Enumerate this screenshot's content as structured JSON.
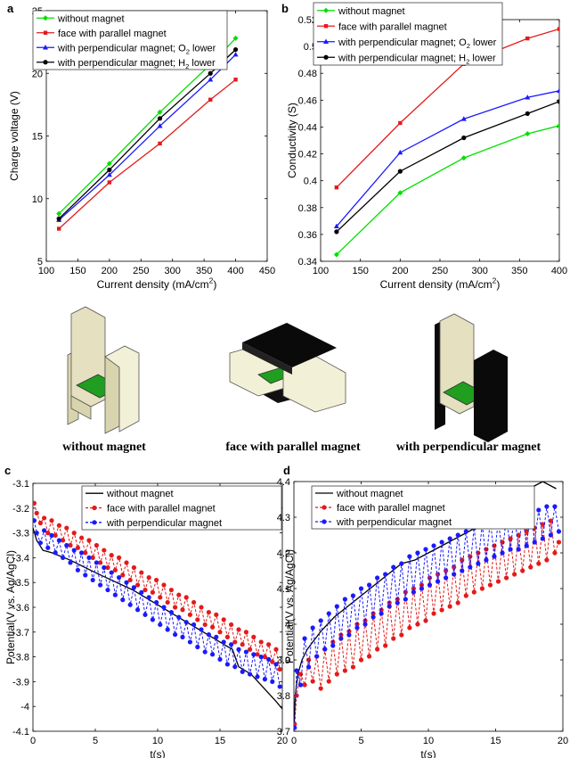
{
  "colors": {
    "green": "#00e000",
    "red": "#e41a1a",
    "blue": "#1a1aff",
    "black": "#000000",
    "block_face": "#f2f0d6",
    "block_side": "#d8d4ae",
    "membrane": "#1f9e1f",
    "magnet": "#0a0a0a"
  },
  "panel_letters": [
    "a",
    "b",
    "c",
    "d"
  ],
  "illustrations": [
    {
      "caption": "without magnet"
    },
    {
      "caption": "face with parallel magnet"
    },
    {
      "caption": "with perpendicular magnet"
    }
  ],
  "chart_data": [
    {
      "panel": "a",
      "type": "line",
      "xlabel": "Current density (mA/cm²)",
      "ylabel": "Charge voltage (V)",
      "xlim": [
        100,
        450
      ],
      "ylim": [
        5,
        25
      ],
      "xticks": [
        100,
        150,
        200,
        250,
        300,
        350,
        400,
        450
      ],
      "yticks": [
        5,
        10,
        15,
        20,
        25
      ],
      "grid": false,
      "legend": "top-left",
      "series": [
        {
          "name": "without magnet",
          "color": "#00e000",
          "marker": "diamond",
          "dashed": false,
          "x": [
            120,
            200,
            280,
            360,
            400
          ],
          "y": [
            8.8,
            12.8,
            16.9,
            20.7,
            22.8
          ]
        },
        {
          "name": "face with parallel magnet",
          "color": "#e41a1a",
          "marker": "square",
          "dashed": false,
          "x": [
            120,
            200,
            280,
            360,
            400
          ],
          "y": [
            7.6,
            11.3,
            14.4,
            17.9,
            19.5
          ]
        },
        {
          "name": "with perpendicular magnet; O₂ lower",
          "color": "#1a1aff",
          "marker": "triangle",
          "dashed": false,
          "x": [
            120,
            200,
            280,
            360,
            400
          ],
          "y": [
            8.3,
            11.9,
            15.8,
            19.5,
            21.5
          ]
        },
        {
          "name": "with perpendicular magnet; H₂ lower",
          "color": "#000000",
          "marker": "circle",
          "dashed": false,
          "x": [
            120,
            200,
            280,
            360,
            400
          ],
          "y": [
            8.4,
            12.3,
            16.4,
            20.0,
            21.9
          ]
        }
      ]
    },
    {
      "panel": "b",
      "type": "line",
      "xlabel": "Current density (mA/cm²)",
      "ylabel": "Conductivity (S)",
      "xlim": [
        100,
        400
      ],
      "ylim": [
        0.34,
        0.52
      ],
      "xticks": [
        100,
        150,
        200,
        250,
        300,
        350,
        400
      ],
      "yticks": [
        0.34,
        0.36,
        0.38,
        0.4,
        0.42,
        0.44,
        0.46,
        0.48,
        0.5,
        0.52
      ],
      "grid": false,
      "legend": "top-left",
      "series": [
        {
          "name": "without magnet",
          "color": "#00e000",
          "marker": "diamond",
          "dashed": false,
          "x": [
            120,
            200,
            280,
            360,
            400
          ],
          "y": [
            0.345,
            0.391,
            0.417,
            0.435,
            0.441
          ]
        },
        {
          "name": "face with parallel magnet",
          "color": "#e41a1a",
          "marker": "square",
          "dashed": false,
          "x": [
            120,
            200,
            280,
            360,
            400
          ],
          "y": [
            0.395,
            0.443,
            0.487,
            0.506,
            0.513
          ]
        },
        {
          "name": "with perpendicular magnet; O₂ lower",
          "color": "#1a1aff",
          "marker": "triangle",
          "dashed": false,
          "x": [
            120,
            200,
            280,
            360,
            400
          ],
          "y": [
            0.366,
            0.421,
            0.446,
            0.462,
            0.467
          ]
        },
        {
          "name": "with perpendicular magnet; H₂ lower",
          "color": "#000000",
          "marker": "circle",
          "dashed": false,
          "x": [
            120,
            200,
            280,
            360,
            400
          ],
          "y": [
            0.362,
            0.407,
            0.432,
            0.45,
            0.459
          ]
        }
      ]
    },
    {
      "panel": "c",
      "type": "line",
      "xlabel": "t(s)",
      "ylabel": "Potential(V vs. Ag/AgCl)",
      "xlim": [
        0,
        20
      ],
      "ylim": [
        -4.1,
        -3.1
      ],
      "xticks": [
        0,
        5,
        10,
        15,
        20
      ],
      "yticks": [
        -4.1,
        -4,
        -3.9,
        -3.8,
        -3.7,
        -3.6,
        -3.5,
        -3.4,
        -3.3,
        -3.2,
        -3.1
      ],
      "grid": false,
      "legend": "top-right",
      "series": [
        {
          "name": "without magnet",
          "color": "#000000",
          "marker": "none",
          "dashed": false,
          "x": [
            0,
            0.3,
            0.8,
            1.5,
            3,
            5,
            8,
            10,
            12,
            14,
            16,
            16.5,
            17.5,
            19.5,
            20
          ],
          "y": [
            -3.28,
            -3.33,
            -3.37,
            -3.38,
            -3.41,
            -3.46,
            -3.53,
            -3.59,
            -3.65,
            -3.71,
            -3.77,
            -3.84,
            -3.87,
            -3.98,
            -4.01
          ]
        },
        {
          "name": "face with parallel magnet",
          "color": "#e41a1a",
          "marker": "circle",
          "dashed": true,
          "x": [
            0.1,
            0.3,
            0.6,
            0.9,
            1.2,
            1.5,
            1.8,
            2.1,
            2.4,
            2.7,
            3.0,
            3.3,
            3.6,
            3.9,
            4.2,
            4.5,
            4.8,
            5.1,
            5.4,
            5.7,
            6.0,
            6.3,
            6.6,
            6.9,
            7.2,
            7.5,
            7.8,
            8.1,
            8.4,
            8.7,
            9.0,
            9.3,
            9.6,
            9.9,
            10.2,
            10.5,
            10.8,
            11.1,
            11.4,
            11.7,
            12.0,
            12.3,
            12.6,
            12.9,
            13.2,
            13.5,
            13.8,
            14.1,
            14.4,
            14.7,
            15.0,
            15.3,
            15.6,
            15.9,
            16.2,
            16.5,
            16.8,
            17.1,
            17.4,
            17.7,
            18.0,
            18.3,
            18.6,
            18.9,
            19.2,
            19.5,
            19.8
          ],
          "y": [
            -3.18,
            -3.22,
            -3.26,
            -3.24,
            -3.3,
            -3.25,
            -3.31,
            -3.27,
            -3.33,
            -3.28,
            -3.35,
            -3.3,
            -3.36,
            -3.32,
            -3.38,
            -3.33,
            -3.4,
            -3.35,
            -3.42,
            -3.37,
            -3.44,
            -3.39,
            -3.45,
            -3.4,
            -3.47,
            -3.42,
            -3.49,
            -3.44,
            -3.51,
            -3.46,
            -3.53,
            -3.48,
            -3.54,
            -3.49,
            -3.56,
            -3.51,
            -3.58,
            -3.53,
            -3.6,
            -3.55,
            -3.61,
            -3.56,
            -3.63,
            -3.58,
            -3.65,
            -3.6,
            -3.67,
            -3.62,
            -3.68,
            -3.63,
            -3.7,
            -3.65,
            -3.72,
            -3.67,
            -3.74,
            -3.69,
            -3.75,
            -3.7,
            -3.77,
            -3.72,
            -3.79,
            -3.74,
            -3.8,
            -3.75,
            -3.82,
            -3.77,
            -3.85
          ]
        },
        {
          "name": "with perpendicular magnet",
          "color": "#1a1aff",
          "marker": "circle",
          "dashed": true,
          "x": [
            0.1,
            0.3,
            0.6,
            0.9,
            1.2,
            1.5,
            1.8,
            2.1,
            2.4,
            2.7,
            3.0,
            3.3,
            3.6,
            3.9,
            4.2,
            4.5,
            4.8,
            5.1,
            5.4,
            5.7,
            6.0,
            6.3,
            6.6,
            6.9,
            7.2,
            7.5,
            7.8,
            8.1,
            8.4,
            8.7,
            9.0,
            9.3,
            9.6,
            9.9,
            10.2,
            10.5,
            10.8,
            11.1,
            11.4,
            11.7,
            12.0,
            12.3,
            12.6,
            12.9,
            13.2,
            13.5,
            13.8,
            14.1,
            14.4,
            14.7,
            15.0,
            15.3,
            15.6,
            15.9,
            16.2,
            16.5,
            16.8,
            17.1,
            17.4,
            17.7,
            18.0,
            18.3,
            18.6,
            18.9,
            19.2,
            19.5,
            19.8
          ],
          "y": [
            -3.25,
            -3.3,
            -3.34,
            -3.29,
            -3.36,
            -3.31,
            -3.38,
            -3.33,
            -3.4,
            -3.35,
            -3.42,
            -3.37,
            -3.45,
            -3.38,
            -3.47,
            -3.4,
            -3.49,
            -3.42,
            -3.51,
            -3.44,
            -3.53,
            -3.46,
            -3.55,
            -3.48,
            -3.57,
            -3.5,
            -3.59,
            -3.52,
            -3.61,
            -3.54,
            -3.63,
            -3.56,
            -3.65,
            -3.58,
            -3.67,
            -3.6,
            -3.69,
            -3.62,
            -3.71,
            -3.64,
            -3.72,
            -3.66,
            -3.74,
            -3.67,
            -3.76,
            -3.69,
            -3.78,
            -3.71,
            -3.79,
            -3.72,
            -3.81,
            -3.74,
            -3.83,
            -3.75,
            -3.84,
            -3.77,
            -3.86,
            -3.78,
            -3.87,
            -3.79,
            -3.88,
            -3.8,
            -3.89,
            -3.81,
            -3.9,
            -3.83,
            -3.92
          ]
        }
      ]
    },
    {
      "panel": "d",
      "type": "line",
      "xlabel": "t(s)",
      "ylabel": "Potential(V vs. Ag/AgCl)",
      "xlim": [
        0,
        20
      ],
      "ylim": [
        3.7,
        4.4
      ],
      "xticks": [
        0,
        5,
        10,
        15,
        20
      ],
      "yticks": [
        3.7,
        3.8,
        3.9,
        4,
        4.1,
        4.2,
        4.3,
        4.4
      ],
      "grid": false,
      "legend": "top-left",
      "series": [
        {
          "name": "without magnet",
          "color": "#000000",
          "marker": "none",
          "dashed": false,
          "x": [
            0,
            0.1,
            0.3,
            0.6,
            1,
            2,
            3,
            4,
            5,
            6,
            7,
            8,
            9,
            10,
            11,
            12,
            13,
            14,
            15,
            16,
            17,
            18,
            18.5,
            19.5
          ],
          "y": [
            3.71,
            3.8,
            3.86,
            3.9,
            3.93,
            3.98,
            4.02,
            4.05,
            4.08,
            4.11,
            4.14,
            4.17,
            4.18,
            4.2,
            4.22,
            4.24,
            4.26,
            4.28,
            4.31,
            4.34,
            4.37,
            4.39,
            4.4,
            4.38
          ]
        },
        {
          "name": "face with parallel magnet",
          "color": "#e41a1a",
          "marker": "circle",
          "dashed": true,
          "x": [
            0.05,
            0.2,
            0.5,
            0.8,
            1.1,
            1.4,
            1.7,
            2.0,
            2.3,
            2.6,
            2.9,
            3.2,
            3.5,
            3.8,
            4.1,
            4.4,
            4.7,
            5.0,
            5.3,
            5.6,
            5.9,
            6.2,
            6.5,
            6.8,
            7.1,
            7.4,
            7.7,
            8.0,
            8.3,
            8.6,
            8.9,
            9.2,
            9.5,
            9.8,
            10.1,
            10.4,
            10.7,
            11.0,
            11.3,
            11.6,
            11.9,
            12.2,
            12.5,
            12.8,
            13.1,
            13.4,
            13.7,
            14.0,
            14.3,
            14.6,
            14.9,
            15.2,
            15.5,
            15.8,
            16.1,
            16.4,
            16.7,
            17.0,
            17.3,
            17.6,
            17.9,
            18.2,
            18.5,
            18.8,
            19.1,
            19.4,
            19.7
          ],
          "y": [
            3.72,
            3.8,
            3.86,
            3.83,
            3.9,
            3.84,
            3.91,
            3.82,
            3.93,
            3.84,
            3.95,
            3.86,
            3.97,
            3.87,
            3.98,
            3.88,
            4.0,
            3.9,
            4.01,
            3.91,
            4.03,
            3.93,
            4.04,
            3.94,
            4.06,
            3.96,
            4.07,
            3.97,
            4.09,
            3.99,
            4.1,
            4.0,
            4.11,
            4.01,
            4.13,
            4.03,
            4.14,
            4.04,
            4.15,
            4.05,
            4.16,
            4.06,
            4.18,
            4.08,
            4.19,
            4.09,
            4.2,
            4.1,
            4.21,
            4.11,
            4.22,
            4.12,
            4.23,
            4.13,
            4.24,
            4.14,
            4.25,
            4.15,
            4.26,
            4.16,
            4.27,
            4.17,
            4.28,
            4.18,
            4.29,
            4.2,
            4.23
          ]
        },
        {
          "name": "with perpendicular magnet",
          "color": "#1a1aff",
          "marker": "circle",
          "dashed": true,
          "x": [
            0.05,
            0.2,
            0.5,
            0.8,
            1.1,
            1.4,
            1.7,
            2.0,
            2.3,
            2.6,
            2.9,
            3.2,
            3.5,
            3.8,
            4.1,
            4.4,
            4.7,
            5.0,
            5.3,
            5.6,
            5.9,
            6.2,
            6.5,
            6.8,
            7.1,
            7.4,
            7.7,
            8.0,
            8.3,
            8.6,
            8.9,
            9.2,
            9.5,
            9.8,
            10.1,
            10.4,
            10.7,
            11.0,
            11.3,
            11.6,
            11.9,
            12.2,
            12.5,
            12.8,
            13.1,
            13.4,
            13.7,
            14.0,
            14.3,
            14.6,
            14.9,
            15.2,
            15.5,
            15.8,
            16.1,
            16.4,
            16.7,
            17.0,
            17.3,
            17.6,
            17.9,
            18.2,
            18.5,
            18.8,
            19.1,
            19.4,
            19.7
          ],
          "y": [
            3.71,
            3.87,
            3.83,
            3.96,
            3.88,
            3.99,
            3.91,
            4.01,
            3.93,
            4.03,
            3.94,
            4.05,
            3.96,
            4.07,
            3.97,
            4.08,
            3.99,
            4.1,
            4.0,
            4.11,
            4.02,
            4.13,
            4.03,
            4.14,
            4.05,
            4.16,
            4.06,
            4.17,
            4.07,
            4.19,
            4.09,
            4.2,
            4.1,
            4.21,
            4.11,
            4.22,
            4.12,
            4.23,
            4.13,
            4.24,
            4.14,
            4.25,
            4.15,
            4.26,
            4.16,
            4.27,
            4.17,
            4.28,
            4.18,
            4.29,
            4.19,
            4.29,
            4.2,
            4.3,
            4.21,
            4.31,
            4.21,
            4.31,
            4.22,
            4.32,
            4.23,
            4.32,
            4.24,
            4.33,
            4.25,
            4.33,
            4.26
          ]
        }
      ]
    }
  ]
}
